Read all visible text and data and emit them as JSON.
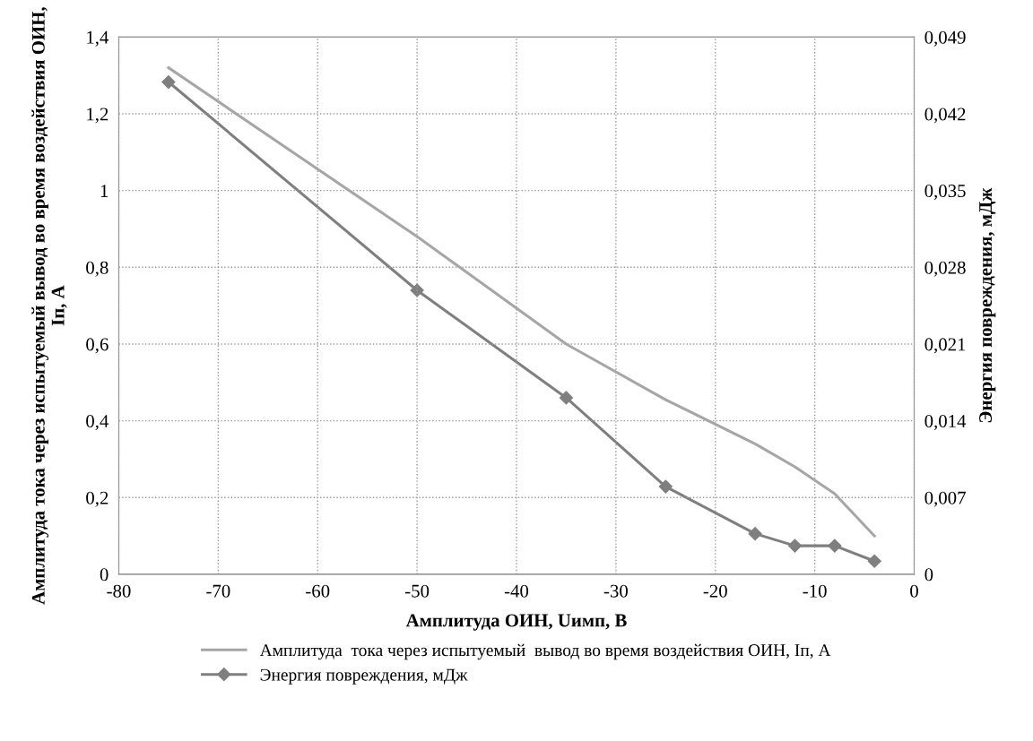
{
  "chart_data": {
    "type": "line",
    "xlabel": "Амплитуда ОИН, Uимп, В",
    "ylabel": "Амплитуда тока через испытуемый вывод во время воздействия ОИН, Iп, А",
    "y2label": "Энергия повреждения, мДж",
    "x": [
      -75,
      -50,
      -35,
      -25,
      -16,
      -12,
      -8,
      -4
    ],
    "series": [
      {
        "name": "Амплитуда  тока через испытуемый  вывод во время воздействия ОИН, Iп, А",
        "color": "#a6a6a6",
        "values": [
          1.32,
          0.88,
          0.6,
          0.455,
          0.34,
          0.28,
          0.21,
          0.1
        ],
        "marker": "none"
      },
      {
        "name": "Энергия повреждения, мДж",
        "color": "#7f7f7f",
        "values": [
          0.0449,
          0.0259,
          0.0161,
          0.008,
          0.0037,
          0.0026,
          0.0026,
          0.0012
        ],
        "axis": "y2",
        "marker": "diamond"
      }
    ],
    "xlim": [
      -80,
      0
    ],
    "xticks": [
      -80,
      -70,
      -60,
      -50,
      -40,
      -30,
      -20,
      -10,
      0
    ],
    "ylim": [
      0,
      1.4
    ],
    "yticks": [
      0,
      {
        "value": 0.2,
        "label": "0,2"
      },
      {
        "value": 0.4,
        "label": "0,4"
      },
      {
        "value": 0.6,
        "label": "0,6"
      },
      {
        "value": 0.8,
        "label": "0,8"
      },
      1,
      {
        "value": 1.2,
        "label": "1,2"
      },
      {
        "value": 1.4,
        "label": "1,4"
      }
    ],
    "y2lim": [
      0,
      0.049
    ],
    "y2ticks": [
      0,
      {
        "value": 0.007,
        "label": "0,007"
      },
      {
        "value": 0.014,
        "label": "0,014"
      },
      {
        "value": 0.021,
        "label": "0,021"
      },
      {
        "value": 0.028,
        "label": "0,028"
      },
      {
        "value": 0.035,
        "label": "0,035"
      },
      {
        "value": 0.042,
        "label": "0,042"
      },
      {
        "value": 0.049,
        "label": "0,049"
      }
    ],
    "grid": true,
    "legend": "bottom",
    "line_style": "solid"
  }
}
